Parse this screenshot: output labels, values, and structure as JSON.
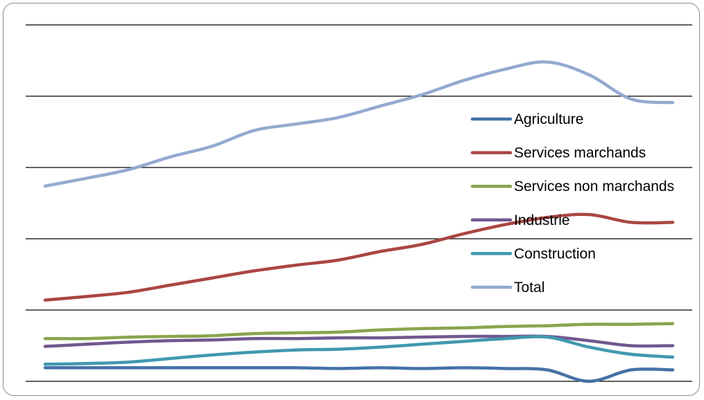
{
  "chart_data": {
    "type": "line",
    "x": [
      1,
      2,
      3,
      4,
      5,
      6,
      7,
      8,
      9,
      10,
      11,
      12,
      13,
      14,
      15,
      16
    ],
    "ylim": [
      0,
      5
    ],
    "grid": true,
    "legend_position": "right",
    "series": [
      {
        "name": "Agriculture",
        "color": "#4572A7",
        "values": [
          0.19,
          0.19,
          0.19,
          0.19,
          0.19,
          0.19,
          0.19,
          0.18,
          0.19,
          0.18,
          0.19,
          0.18,
          0.16,
          0.0,
          0.16,
          0.16
        ]
      },
      {
        "name": "Services marchands",
        "color": "#AA4643",
        "values": [
          1.14,
          1.19,
          1.25,
          1.35,
          1.45,
          1.55,
          1.63,
          1.7,
          1.82,
          1.92,
          2.07,
          2.2,
          2.3,
          2.34,
          2.23,
          2.23
        ]
      },
      {
        "name": "Services non marchands",
        "color": "#89A54E",
        "values": [
          0.6,
          0.6,
          0.62,
          0.63,
          0.64,
          0.67,
          0.68,
          0.69,
          0.72,
          0.74,
          0.75,
          0.77,
          0.78,
          0.8,
          0.8,
          0.81
        ]
      },
      {
        "name": "Industrie",
        "color": "#71588F",
        "values": [
          0.49,
          0.52,
          0.55,
          0.57,
          0.58,
          0.6,
          0.6,
          0.61,
          0.61,
          0.62,
          0.63,
          0.63,
          0.63,
          0.57,
          0.5,
          0.5
        ]
      },
      {
        "name": "Construction",
        "color": "#4198AF",
        "values": [
          0.24,
          0.25,
          0.27,
          0.32,
          0.37,
          0.41,
          0.44,
          0.45,
          0.48,
          0.52,
          0.56,
          0.6,
          0.62,
          0.48,
          0.38,
          0.34
        ]
      },
      {
        "name": "Total",
        "color": "#93A9CF",
        "values": [
          2.74,
          2.85,
          2.97,
          3.15,
          3.3,
          3.52,
          3.61,
          3.7,
          3.86,
          4.02,
          4.22,
          4.38,
          4.48,
          4.3,
          3.96,
          3.91
        ]
      }
    ]
  }
}
